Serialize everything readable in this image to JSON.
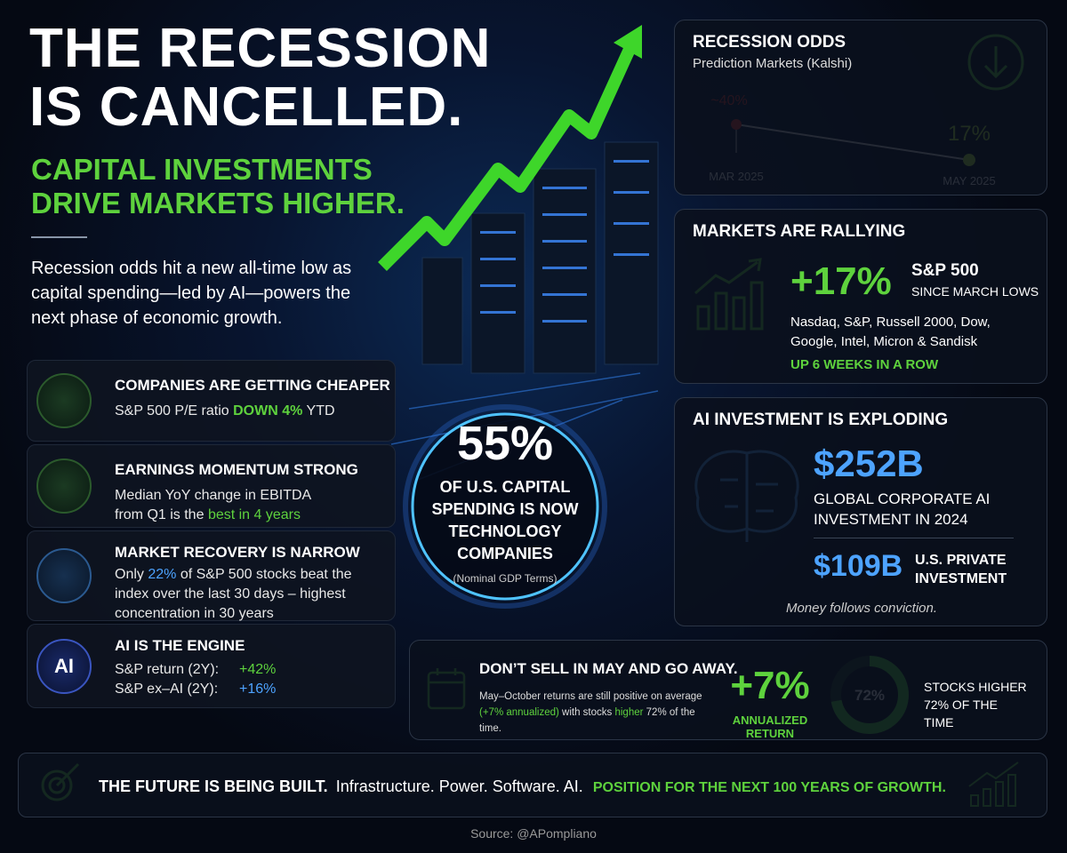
{
  "header": {
    "title": [
      "THE RECESSION",
      "IS CANCELLED."
    ],
    "subtitle": [
      "CAPITAL INVESTMENTS",
      "DRIVE MARKETS HIGHER."
    ],
    "intro": "Recession odds hit a new all-time low as capital spending—led by AI—powers the next phase of economic growth."
  },
  "cards": [
    {
      "title": "COMPANIES ARE GETTING CHEAPER",
      "body": [
        "S&P 500 P/E ratio",
        "DOWN 4%",
        "YTD"
      ]
    },
    {
      "title": "EARNINGS MOMENTUM STRONG",
      "body": [
        "Median YoY change in EBITDA from Q1 is the",
        "best in 4 years"
      ]
    },
    {
      "title": "MARKET RECOVERY IS NARROW",
      "body": [
        "Only",
        "22%",
        "of S&P 500 stocks beat the index over the last 30 days – highest concentration in 30 years"
      ]
    },
    {
      "title": "AI IS THE ENGINE",
      "icon": "AI",
      "rows": [
        {
          "label": "S&P return (2Y):",
          "value": "+42%"
        },
        {
          "label": "S&P ex–AI (2Y):",
          "value": "+16%"
        }
      ]
    }
  ],
  "center": {
    "value": "55%",
    "text": "OF U.S. CAPITAL SPENDING IS NOW TECHNOLOGY COMPANIES",
    "note": "(Nominal GDP Terms)"
  },
  "recession_odds": {
    "title": "RECESSION ODDS",
    "subtitle": "Prediction Markets (Kalshi)",
    "points": [
      {
        "date": "MAR 2025",
        "value": 40,
        "label": "~40%"
      },
      {
        "date": "MAY 2025",
        "value": 17,
        "label": "17%"
      }
    ]
  },
  "markets": {
    "title": "MARKETS ARE RALLYING",
    "value": "+17%",
    "index": "S&P 500",
    "since": "SINCE MARCH LOWS",
    "list": "Nasdaq, S&P, Russell 2000, Dow, Google, Intel, Micron & Sandisk",
    "streak": "UP 6 WEEKS IN A ROW"
  },
  "ai_investment": {
    "title": "AI INVESTMENT IS EXPLODING",
    "global_value": "$252B",
    "global_label": "GLOBAL CORPORATE AI INVESTMENT IN 2024",
    "us_value": "$109B",
    "us_label": "U.S. PRIVATE INVESTMENT",
    "tagline": "Money follows conviction."
  },
  "may": {
    "title": "DON’T SELL IN MAY AND GO AWAY.",
    "body": [
      "May–October returns are still positive on average",
      "(+7% annualized)",
      "with stocks",
      "higher",
      "72% of the time."
    ],
    "return_value": "+7%",
    "return_label": "ANNUALIZED RETURN",
    "donut": {
      "value": 72,
      "label": "72%"
    },
    "donut_text": "STOCKS HIGHER 72% OF THE TIME"
  },
  "footer": {
    "lead": "THE FUTURE IS BEING BUILT.",
    "middle": "Infrastructure. Power. Software. AI.",
    "cta": "POSITION FOR THE NEXT 100 YEARS OF GROWTH."
  },
  "source": "Source: @APompliano"
}
